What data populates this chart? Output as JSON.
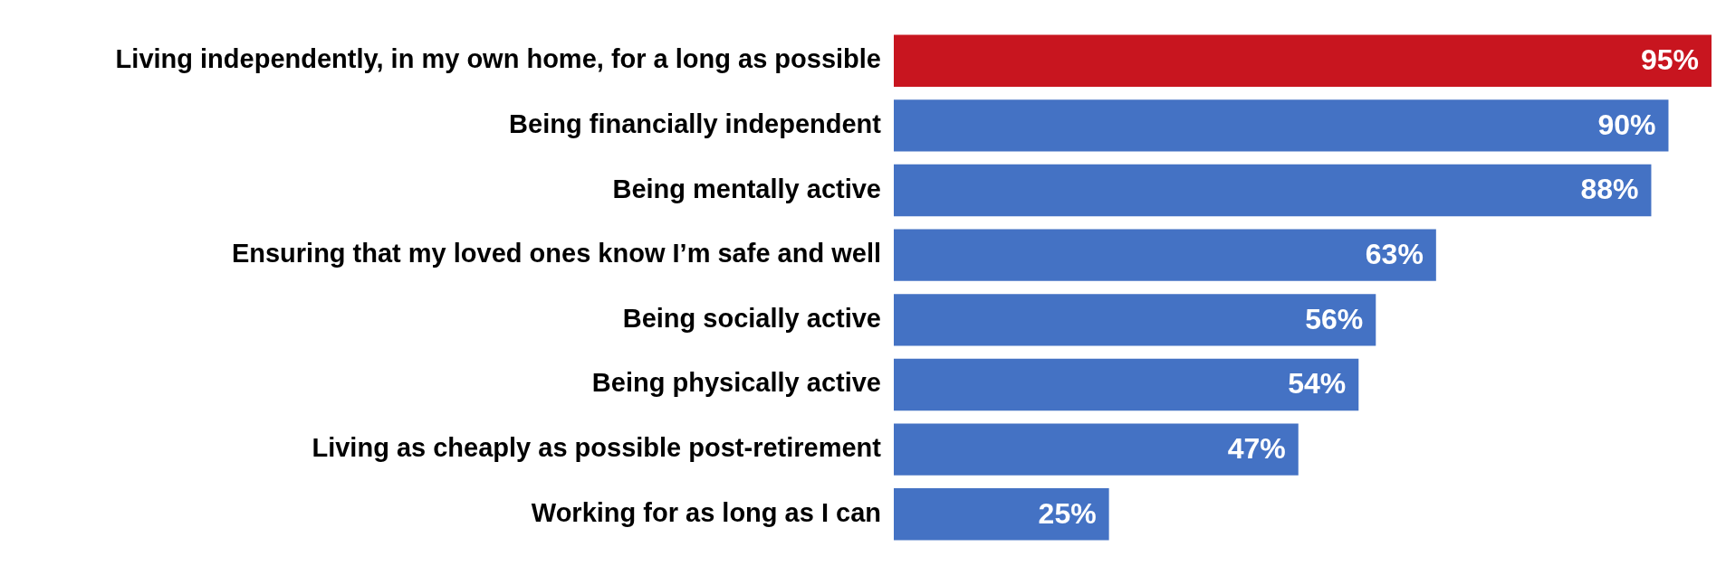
{
  "chart_data": {
    "type": "bar",
    "orientation": "horizontal",
    "categories": [
      "Living independently, in my own home, for a long as possible",
      "Being financially independent",
      "Being mentally active",
      "Ensuring that my loved ones know I’m safe and well",
      "Being socially active",
      "Being physically active",
      "Living as cheaply as possible post-retirement",
      "Working for as long as I can"
    ],
    "values": [
      95,
      90,
      88,
      63,
      56,
      54,
      47,
      25
    ],
    "value_labels": [
      "95%",
      "90%",
      "88%",
      "63%",
      "56%",
      "54%",
      "47%",
      "25%"
    ],
    "colors": [
      "#c8151f",
      "#4472c4",
      "#4472c4",
      "#4472c4",
      "#4472c4",
      "#4472c4",
      "#4472c4",
      "#4472c4"
    ],
    "xlim": [
      0,
      95
    ],
    "tick_labels": "y",
    "legend": false
  }
}
